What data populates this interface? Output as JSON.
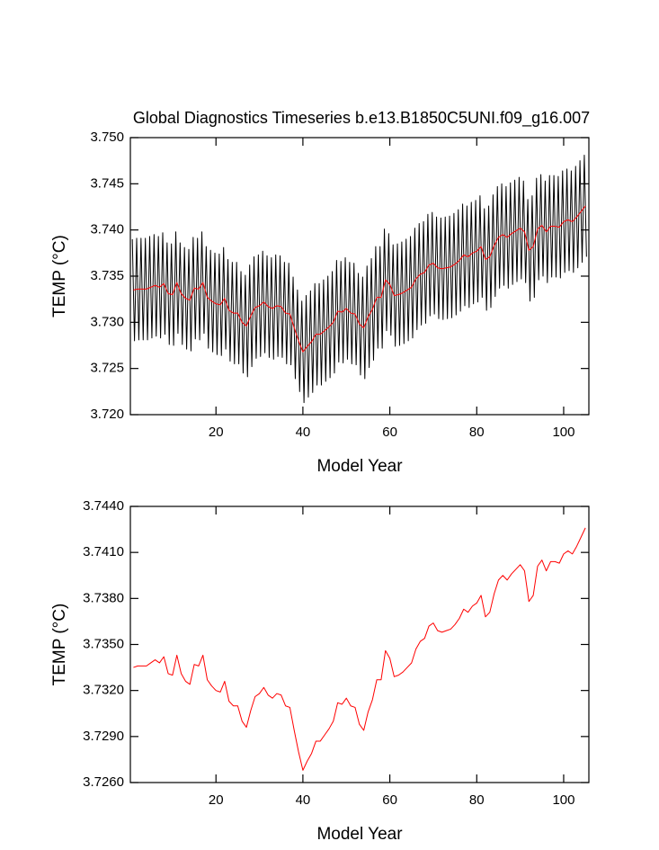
{
  "chart_data": [
    {
      "type": "line",
      "title": "Global Diagnostics Timeseries b.e13.B1850C5UNI.f09_g16.007",
      "xlabel": "Model Year",
      "ylabel": "TEMP (°C)",
      "xlim": [
        0.3,
        105.8
      ],
      "xticks": [
        20,
        40,
        60,
        80,
        100
      ],
      "ylim": [
        3.72,
        3.75
      ],
      "yticks": [
        {
          "value": 3.72,
          "label": "3.720"
        },
        {
          "value": 3.725,
          "label": "3.725"
        },
        {
          "value": 3.73,
          "label": "3.730"
        },
        {
          "value": 3.735,
          "label": "3.735"
        },
        {
          "value": 3.74,
          "label": "3.740"
        },
        {
          "value": 3.745,
          "label": "3.745"
        },
        {
          "value": 3.75,
          "label": "3.750"
        }
      ],
      "series": [
        {
          "color": "#000000",
          "x": [
            0.75,
            1.25,
            1.75,
            2.25,
            2.75,
            3.25,
            3.75,
            4.25,
            4.75,
            5.25,
            5.75,
            6.25,
            6.75,
            7.25,
            7.75,
            8.25,
            8.75,
            9.25,
            9.75,
            10.25,
            10.75,
            11.25,
            11.75,
            12.25,
            12.75,
            13.25,
            13.75,
            14.25,
            14.75,
            15.25,
            15.75,
            16.25,
            16.75,
            17.25,
            17.75,
            18.25,
            18.75,
            19.25,
            19.75,
            20.25,
            20.75,
            21.25,
            21.75,
            22.25,
            22.75,
            23.25,
            23.75,
            24.25,
            24.75,
            25.25,
            25.75,
            26.25,
            26.75,
            27.25,
            27.75,
            28.25,
            28.75,
            29.25,
            29.75,
            30.25,
            30.75,
            31.25,
            31.75,
            32.25,
            32.75,
            33.25,
            33.75,
            34.25,
            34.75,
            35.25,
            35.75,
            36.25,
            36.75,
            37.25,
            37.75,
            38.25,
            38.75,
            39.25,
            39.75,
            40.25,
            40.75,
            41.25,
            41.75,
            42.25,
            42.75,
            43.25,
            43.75,
            44.25,
            44.75,
            45.25,
            45.75,
            46.25,
            46.75,
            47.25,
            47.75,
            48.25,
            48.75,
            49.25,
            49.75,
            50.25,
            50.75,
            51.25,
            51.75,
            52.25,
            52.75,
            53.25,
            53.75,
            54.25,
            54.75,
            55.25,
            55.75,
            56.25,
            56.75,
            57.25,
            57.75,
            58.25,
            58.75,
            59.25,
            59.75,
            60.25,
            60.75,
            61.25,
            61.75,
            62.25,
            62.75,
            63.25,
            63.75,
            64.25,
            64.75,
            65.25,
            65.75,
            66.25,
            66.75,
            67.25,
            67.75,
            68.25,
            68.75,
            69.25,
            69.75,
            70.25,
            70.75,
            71.25,
            71.75,
            72.25,
            72.75,
            73.25,
            73.75,
            74.25,
            74.75,
            75.25,
            75.75,
            76.25,
            76.75,
            77.25,
            77.75,
            78.25,
            78.75,
            79.25,
            79.75,
            80.25,
            80.75,
            81.25,
            81.75,
            82.25,
            82.75,
            83.25,
            83.75,
            84.25,
            84.75,
            85.25,
            85.75,
            86.25,
            86.75,
            87.25,
            87.75,
            88.25,
            88.75,
            89.25,
            89.75,
            90.25,
            90.75,
            91.25,
            91.75,
            92.25,
            92.75,
            93.25,
            93.75,
            94.25,
            94.75,
            95.25,
            95.75,
            96.25,
            96.75,
            97.25,
            97.75,
            98.25,
            98.75,
            99.25,
            99.75,
            100.25,
            100.75,
            101.25,
            101.75,
            102.25,
            102.75,
            103.25,
            103.75,
            104.25,
            104.75,
            105.25
          ],
          "values": [
            3.739,
            3.728,
            3.7391,
            3.7281,
            3.7391,
            3.7281,
            3.7391,
            3.7281,
            3.7393,
            3.7283,
            3.7395,
            3.7285,
            3.7393,
            3.7283,
            3.7397,
            3.7287,
            3.7386,
            3.7276,
            3.7385,
            3.7275,
            3.7398,
            3.7288,
            3.7386,
            3.7276,
            3.7381,
            3.7271,
            3.7379,
            3.7269,
            3.7392,
            3.7282,
            3.7391,
            3.7281,
            3.7398,
            3.7288,
            3.7382,
            3.7272,
            3.7378,
            3.7268,
            3.7375,
            3.7265,
            3.7374,
            3.7264,
            3.7381,
            3.7271,
            3.7368,
            3.7258,
            3.7365,
            3.7255,
            3.7365,
            3.7255,
            3.7355,
            3.7245,
            3.7351,
            3.7241,
            3.7362,
            3.7252,
            3.7371,
            3.7261,
            3.7373,
            3.7263,
            3.7377,
            3.7267,
            3.7372,
            3.7262,
            3.737,
            3.726,
            3.7373,
            3.7263,
            3.7372,
            3.7262,
            3.7365,
            3.7255,
            3.7364,
            3.7254,
            3.7349,
            3.7239,
            3.7335,
            3.7225,
            3.7323,
            3.7213,
            3.7329,
            3.7219,
            3.7334,
            3.7224,
            3.7342,
            3.7232,
            3.7342,
            3.7232,
            3.7346,
            3.7236,
            3.735,
            3.724,
            3.7355,
            3.7245,
            3.7367,
            3.7257,
            3.7366,
            3.7256,
            3.737,
            3.726,
            3.7365,
            3.7255,
            3.7364,
            3.7254,
            3.7353,
            3.7243,
            3.7349,
            3.7239,
            3.7361,
            3.7251,
            3.7369,
            3.7259,
            3.7382,
            3.7272,
            3.7382,
            3.7272,
            3.7401,
            3.7291,
            3.7396,
            3.7286,
            3.7384,
            3.7274,
            3.7385,
            3.7275,
            3.7387,
            3.7277,
            3.739,
            3.728,
            3.7393,
            3.7283,
            3.7402,
            3.7292,
            3.7407,
            3.7297,
            3.7409,
            3.7299,
            3.7417,
            3.7307,
            3.7419,
            3.7309,
            3.7414,
            3.7304,
            3.7413,
            3.7303,
            3.7414,
            3.7304,
            3.7415,
            3.7305,
            3.7418,
            3.7308,
            3.7422,
            3.7312,
            3.7428,
            3.7318,
            3.7426,
            3.7316,
            3.743,
            3.732,
            3.7432,
            3.7322,
            3.7437,
            3.7327,
            3.7423,
            3.7313,
            3.7426,
            3.7316,
            3.7438,
            3.7328,
            3.7447,
            3.7337,
            3.745,
            3.734,
            3.7447,
            3.7337,
            3.7451,
            3.7341,
            3.7454,
            3.7344,
            3.7457,
            3.7347,
            3.7453,
            3.7343,
            3.7433,
            3.7323,
            3.7437,
            3.7327,
            3.7456,
            3.7346,
            3.746,
            3.735,
            3.7453,
            3.7343,
            3.7459,
            3.7349,
            3.7459,
            3.7349,
            3.7458,
            3.7348,
            3.7464,
            3.7354,
            3.7466,
            3.7356,
            3.7464,
            3.7354,
            3.7469,
            3.7359,
            3.7475,
            3.7365,
            3.7481,
            3.7371
          ]
        },
        {
          "color": "#ff0000",
          "x": [
            1,
            2,
            3,
            4,
            5,
            6,
            7,
            8,
            9,
            10,
            11,
            12,
            13,
            14,
            15,
            16,
            17,
            18,
            19,
            20,
            21,
            22,
            23,
            24,
            25,
            26,
            27,
            28,
            29,
            30,
            31,
            32,
            33,
            34,
            35,
            36,
            37,
            38,
            39,
            40,
            41,
            42,
            43,
            44,
            45,
            46,
            47,
            48,
            49,
            50,
            51,
            52,
            53,
            54,
            55,
            56,
            57,
            58,
            59,
            60,
            61,
            62,
            63,
            64,
            65,
            66,
            67,
            68,
            69,
            70,
            71,
            72,
            73,
            74,
            75,
            76,
            77,
            78,
            79,
            80,
            81,
            82,
            83,
            84,
            85,
            86,
            87,
            88,
            89,
            90,
            91,
            92,
            93,
            94,
            95,
            96,
            97,
            98,
            99,
            100,
            101,
            102,
            103,
            104,
            105
          ],
          "values": [
            3.7335,
            3.7336,
            3.7336,
            3.7336,
            3.7338,
            3.734,
            3.7338,
            3.7342,
            3.7331,
            3.733,
            3.7343,
            3.7331,
            3.7326,
            3.7324,
            3.7337,
            3.7336,
            3.7343,
            3.7327,
            3.7323,
            3.732,
            3.7319,
            3.7326,
            3.7313,
            3.731,
            3.731,
            3.73,
            3.7296,
            3.7307,
            3.7316,
            3.7318,
            3.7322,
            3.7317,
            3.7315,
            3.7318,
            3.7317,
            3.731,
            3.7309,
            3.7294,
            3.728,
            3.7268,
            3.7274,
            3.7279,
            3.7287,
            3.7287,
            3.7291,
            3.7295,
            3.73,
            3.7312,
            3.7311,
            3.7315,
            3.731,
            3.7309,
            3.7298,
            3.7294,
            3.7306,
            3.7314,
            3.7327,
            3.7327,
            3.7346,
            3.7341,
            3.7329,
            3.733,
            3.7332,
            3.7335,
            3.7338,
            3.7347,
            3.7352,
            3.7354,
            3.7362,
            3.7364,
            3.7359,
            3.7358,
            3.7359,
            3.736,
            3.7363,
            3.7367,
            3.7373,
            3.7371,
            3.7375,
            3.7377,
            3.7382,
            3.7368,
            3.7371,
            3.7383,
            3.7392,
            3.7395,
            3.7392,
            3.7396,
            3.7399,
            3.7402,
            3.7398,
            3.7378,
            3.7382,
            3.7401,
            3.7405,
            3.7398,
            3.7404,
            3.7404,
            3.7403,
            3.7409,
            3.7411,
            3.7409,
            3.7414,
            3.742,
            3.7426
          ]
        }
      ]
    },
    {
      "type": "line",
      "xlabel": "Model Year",
      "ylabel": "TEMP (°C)",
      "xlim": [
        0.3,
        105.8
      ],
      "xticks": [
        20,
        40,
        60,
        80,
        100
      ],
      "ylim": [
        3.726,
        3.744
      ],
      "yticks": [
        {
          "value": 3.726,
          "label": "3.7260"
        },
        {
          "value": 3.729,
          "label": "3.7290"
        },
        {
          "value": 3.732,
          "label": "3.7320"
        },
        {
          "value": 3.735,
          "label": "3.7350"
        },
        {
          "value": 3.738,
          "label": "3.7380"
        },
        {
          "value": 3.741,
          "label": "3.7410"
        },
        {
          "value": 3.744,
          "label": "3.7440"
        }
      ],
      "series": [
        {
          "color": "#ff0000",
          "x": [
            1,
            2,
            3,
            4,
            5,
            6,
            7,
            8,
            9,
            10,
            11,
            12,
            13,
            14,
            15,
            16,
            17,
            18,
            19,
            20,
            21,
            22,
            23,
            24,
            25,
            26,
            27,
            28,
            29,
            30,
            31,
            32,
            33,
            34,
            35,
            36,
            37,
            38,
            39,
            40,
            41,
            42,
            43,
            44,
            45,
            46,
            47,
            48,
            49,
            50,
            51,
            52,
            53,
            54,
            55,
            56,
            57,
            58,
            59,
            60,
            61,
            62,
            63,
            64,
            65,
            66,
            67,
            68,
            69,
            70,
            71,
            72,
            73,
            74,
            75,
            76,
            77,
            78,
            79,
            80,
            81,
            82,
            83,
            84,
            85,
            86,
            87,
            88,
            89,
            90,
            91,
            92,
            93,
            94,
            95,
            96,
            97,
            98,
            99,
            100,
            101,
            102,
            103,
            104,
            105
          ],
          "values": [
            3.7335,
            3.7336,
            3.7336,
            3.7336,
            3.7338,
            3.734,
            3.7338,
            3.7342,
            3.7331,
            3.733,
            3.7343,
            3.7331,
            3.7326,
            3.7324,
            3.7337,
            3.7336,
            3.7343,
            3.7327,
            3.7323,
            3.732,
            3.7319,
            3.7326,
            3.7313,
            3.731,
            3.731,
            3.73,
            3.7296,
            3.7307,
            3.7316,
            3.7318,
            3.7322,
            3.7317,
            3.7315,
            3.7318,
            3.7317,
            3.731,
            3.7309,
            3.7294,
            3.728,
            3.7268,
            3.7274,
            3.7279,
            3.7287,
            3.7287,
            3.7291,
            3.7295,
            3.73,
            3.7312,
            3.7311,
            3.7315,
            3.731,
            3.7309,
            3.7298,
            3.7294,
            3.7306,
            3.7314,
            3.7327,
            3.7327,
            3.7346,
            3.7341,
            3.7329,
            3.733,
            3.7332,
            3.7335,
            3.7338,
            3.7347,
            3.7352,
            3.7354,
            3.7362,
            3.7364,
            3.7359,
            3.7358,
            3.7359,
            3.736,
            3.7363,
            3.7367,
            3.7373,
            3.7371,
            3.7375,
            3.7377,
            3.7382,
            3.7368,
            3.7371,
            3.7383,
            3.7392,
            3.7395,
            3.7392,
            3.7396,
            3.7399,
            3.7402,
            3.7398,
            3.7378,
            3.7382,
            3.7401,
            3.7405,
            3.7398,
            3.7404,
            3.7404,
            3.7403,
            3.7409,
            3.7411,
            3.7409,
            3.7414,
            3.742,
            3.7426
          ]
        }
      ]
    }
  ]
}
